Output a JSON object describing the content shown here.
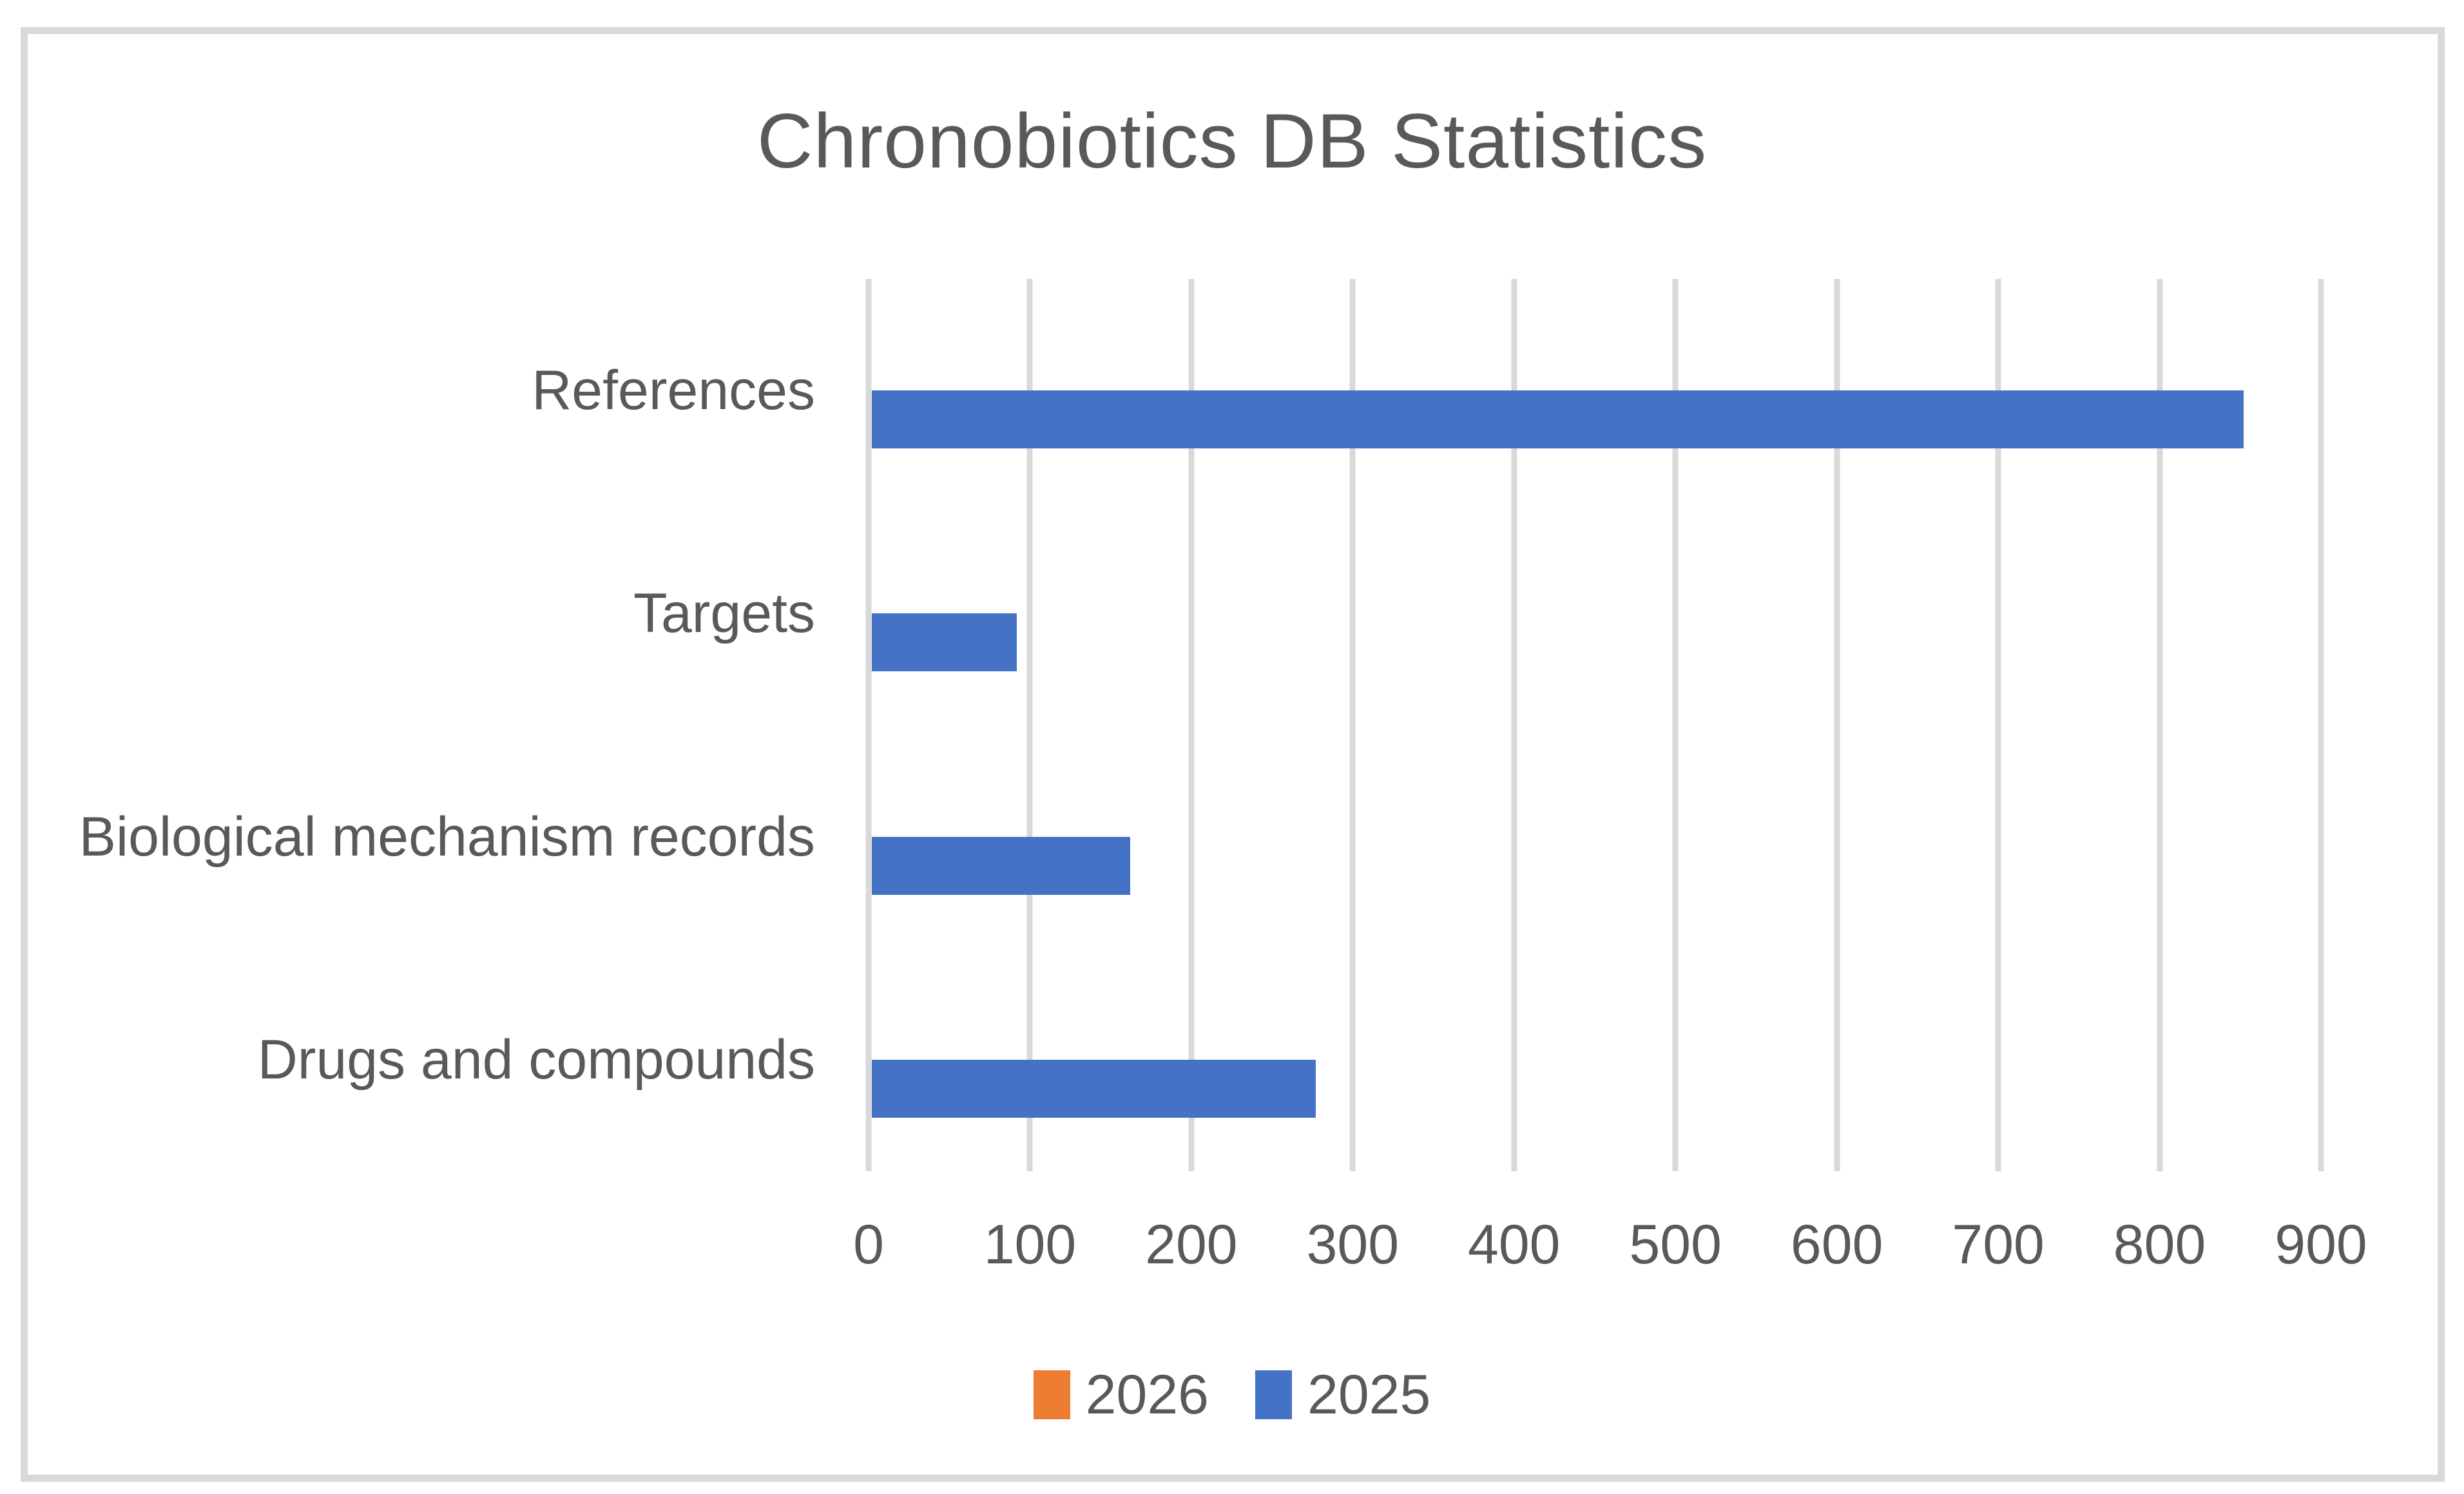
{
  "title": "Chronobiotics DB Statistics",
  "colors": {
    "series_2025": "#4472C4",
    "series_2026": "#ED7D31",
    "text": "#595959",
    "gridline": "#D9D9D9",
    "border": "#D9D9D9",
    "background": "#FFFFFF"
  },
  "chart_data": {
    "type": "bar",
    "orientation": "horizontal",
    "title": "Chronobiotics DB Statistics",
    "categories": [
      "References",
      "Targets",
      "Biological mechanism records",
      "Drugs and compounds"
    ],
    "series": [
      {
        "name": "2026",
        "color": "#ED7D31",
        "values": [
          0,
          0,
          0,
          0
        ]
      },
      {
        "name": "2025",
        "color": "#4472C4",
        "values": [
          850,
          90,
          160,
          275
        ]
      }
    ],
    "xlabel": "",
    "ylabel": "",
    "xlim": [
      0,
      900
    ],
    "x_ticks": [
      0,
      100,
      200,
      300,
      400,
      500,
      600,
      700,
      800,
      900
    ],
    "grid": true,
    "legend_position": "bottom",
    "legend_order": [
      "2026",
      "2025"
    ]
  }
}
